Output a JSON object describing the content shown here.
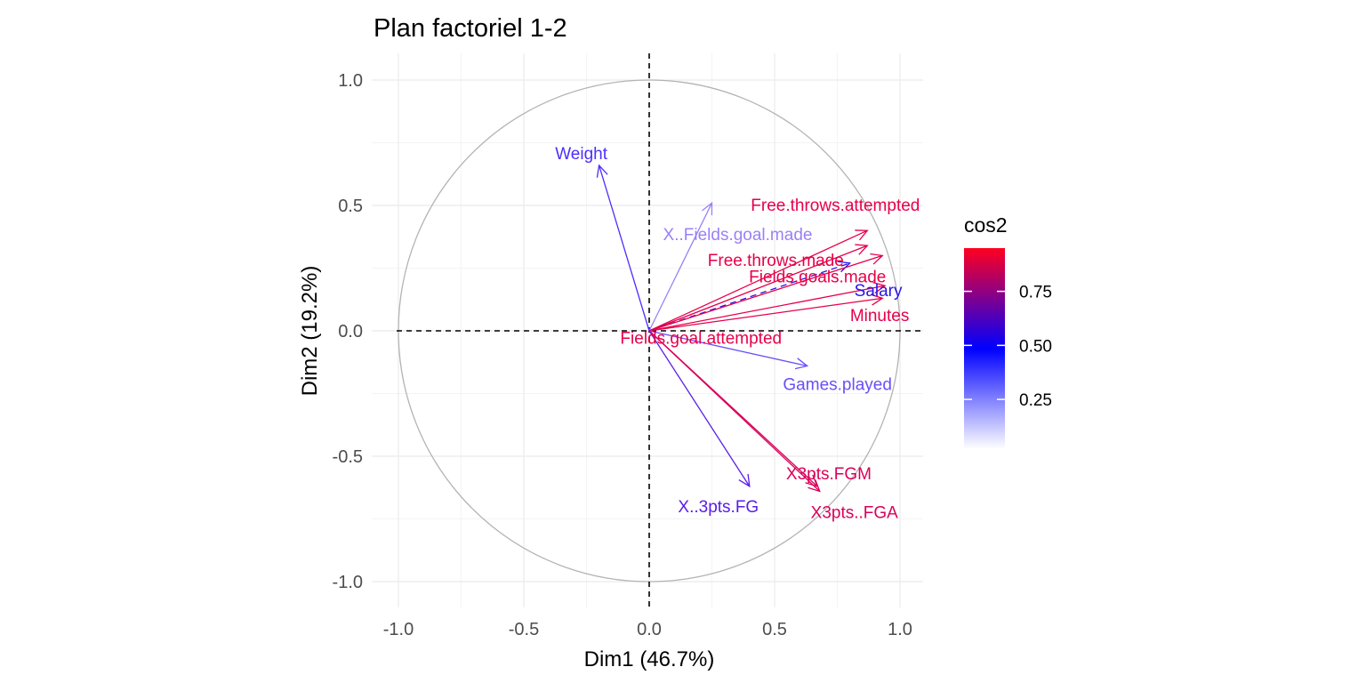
{
  "chart_data": {
    "type": "scatter",
    "title": "Plan factoriel 1-2",
    "xlabel": "Dim1 (46.7%)",
    "ylabel": "Dim2 (19.2%)",
    "xlim": [
      -1.0,
      1.0
    ],
    "ylim": [
      -1.0,
      1.0
    ],
    "x_ticks": [
      "-1.0",
      "-0.5",
      "0.0",
      "0.5",
      "1.0"
    ],
    "y_ticks": [
      "-1.0",
      "-0.5",
      "0.0",
      "0.5",
      "1.0"
    ],
    "grid": true,
    "correlation_circle": true,
    "legend": {
      "title": "cos2",
      "placement": "right",
      "ticks": [
        "0.25",
        "0.50",
        "0.75"
      ],
      "colors": {
        "low": "#ffffff",
        "mid": "#0000ff",
        "high": "#ff0020"
      }
    },
    "variables": [
      {
        "name": "Weight",
        "x": -0.2,
        "y": 0.66,
        "color": "#4d2eff"
      },
      {
        "name": "X..Fields.goal.made",
        "x": 0.25,
        "y": 0.51,
        "color": "#9b80f7"
      },
      {
        "name": "Free.throws.attempted",
        "x": 0.87,
        "y": 0.4,
        "color": "#e6004a"
      },
      {
        "name": "Free.throws.made",
        "x": 0.87,
        "y": 0.34,
        "color": "#e6004a"
      },
      {
        "name": "Salary",
        "x": 0.8,
        "y": 0.27,
        "color": "#2a14e6"
      },
      {
        "name": "Fields.goals.made",
        "x": 0.93,
        "y": 0.3,
        "color": "#e6004a"
      },
      {
        "name": "Minutes",
        "x": 0.94,
        "y": 0.18,
        "color": "#e6004a"
      },
      {
        "name": "Fields.goal.attempted",
        "x": 0.93,
        "y": 0.13,
        "color": "#e6004a"
      },
      {
        "name": "Games.played",
        "x": 0.63,
        "y": -0.14,
        "color": "#6a4ff5"
      },
      {
        "name": "X3pts.FGM",
        "x": 0.67,
        "y": -0.62,
        "color": "#d9005a"
      },
      {
        "name": "X3pts..FGA",
        "x": 0.68,
        "y": -0.64,
        "color": "#d9005a"
      },
      {
        "name": "X..3pts.FG",
        "x": 0.4,
        "y": -0.62,
        "color": "#5a1ee6"
      }
    ]
  }
}
